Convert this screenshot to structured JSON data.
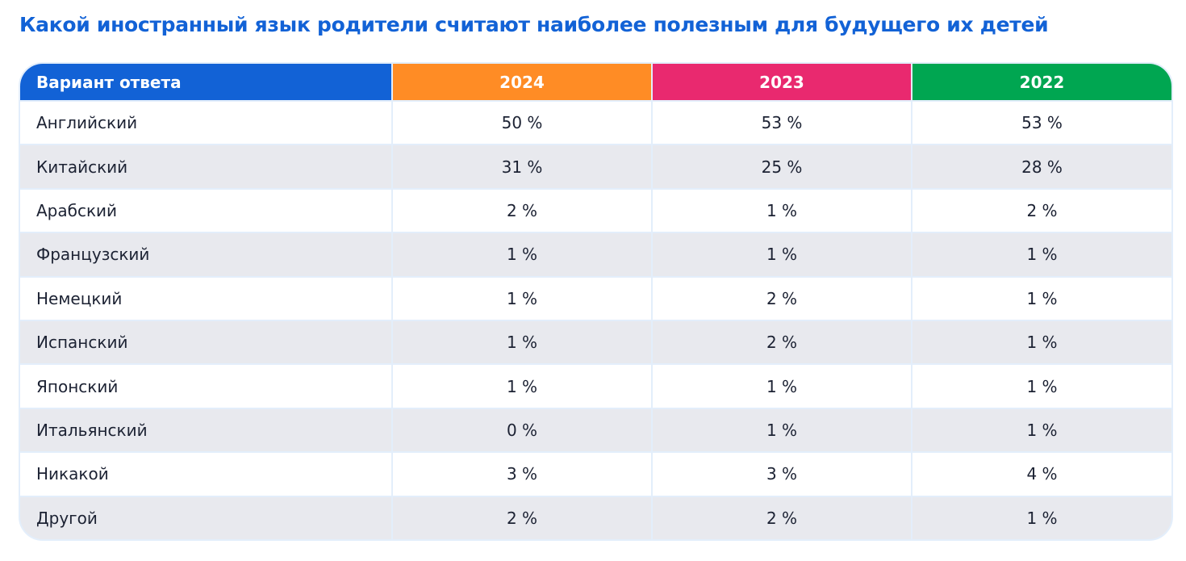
{
  "title": "Какой иностранный язык родители считают наиболее полезным для будущего их детей",
  "chart_data": {
    "type": "table",
    "title": "Какой иностранный язык родители считают наиболее полезным для будущего их детей",
    "columns": [
      "Вариант ответа",
      "2024",
      "2023",
      "2022"
    ],
    "header_colors": [
      "#1262d6",
      "#ff8c25",
      "#e9296f",
      "#00a651"
    ],
    "rows": [
      [
        "Английский",
        "50 %",
        "53 %",
        "53 %"
      ],
      [
        "Китайский",
        "31 %",
        "25 %",
        "28 %"
      ],
      [
        "Арабский",
        "2 %",
        "1 %",
        "2 %"
      ],
      [
        "Французский",
        "1 %",
        "1 %",
        "1 %"
      ],
      [
        "Немецкий",
        "1 %",
        "2 %",
        "1 %"
      ],
      [
        "Испанский",
        "1 %",
        "2 %",
        "1 %"
      ],
      [
        "Японский",
        "1 %",
        "1 %",
        "1 %"
      ],
      [
        "Итальянский",
        "0 %",
        "1 %",
        "1 %"
      ],
      [
        "Никакой",
        "3 %",
        "3 %",
        "4 %"
      ],
      [
        "Другой",
        "2 %",
        "2 %",
        "1 %"
      ]
    ]
  }
}
